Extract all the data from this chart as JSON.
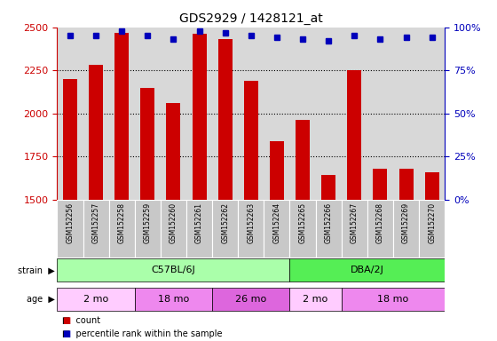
{
  "title": "GDS2929 / 1428121_at",
  "samples": [
    "GSM152256",
    "GSM152257",
    "GSM152258",
    "GSM152259",
    "GSM152260",
    "GSM152261",
    "GSM152262",
    "GSM152263",
    "GSM152264",
    "GSM152265",
    "GSM152266",
    "GSM152267",
    "GSM152268",
    "GSM152269",
    "GSM152270"
  ],
  "counts": [
    2200,
    2280,
    2470,
    2150,
    2060,
    2460,
    2430,
    2190,
    1840,
    1960,
    1640,
    2250,
    1680,
    1680,
    1660
  ],
  "percentile_ranks": [
    95,
    95,
    98,
    95,
    93,
    98,
    97,
    95,
    94,
    93,
    92,
    95,
    93,
    94,
    94
  ],
  "ylim_left": [
    1500,
    2500
  ],
  "ylim_right": [
    0,
    100
  ],
  "yticks_left": [
    1500,
    1750,
    2000,
    2250,
    2500
  ],
  "yticks_right": [
    0,
    25,
    50,
    75,
    100
  ],
  "bar_color": "#cc0000",
  "dot_color": "#0000bb",
  "bar_width": 0.55,
  "strain_groups": [
    {
      "label": "C57BL/6J",
      "start": 0,
      "end": 9,
      "color": "#aaffaa"
    },
    {
      "label": "DBA/2J",
      "start": 9,
      "end": 15,
      "color": "#55ee55"
    }
  ],
  "age_groups": [
    {
      "label": "2 mo",
      "start": 0,
      "end": 3,
      "color": "#ffccff"
    },
    {
      "label": "18 mo",
      "start": 3,
      "end": 6,
      "color": "#ee88ee"
    },
    {
      "label": "26 mo",
      "start": 6,
      "end": 9,
      "color": "#dd66dd"
    },
    {
      "label": "2 mo",
      "start": 9,
      "end": 11,
      "color": "#ffccff"
    },
    {
      "label": "18 mo",
      "start": 11,
      "end": 15,
      "color": "#ee88ee"
    }
  ],
  "legend_items": [
    {
      "label": "count",
      "color": "#cc0000"
    },
    {
      "label": "percentile rank within the sample",
      "color": "#0000bb"
    }
  ],
  "title_fontsize": 10,
  "axis_color_left": "#cc0000",
  "axis_color_right": "#0000bb",
  "plot_bg_color": "#d8d8d8",
  "label_bg_color": "#c8c8c8"
}
